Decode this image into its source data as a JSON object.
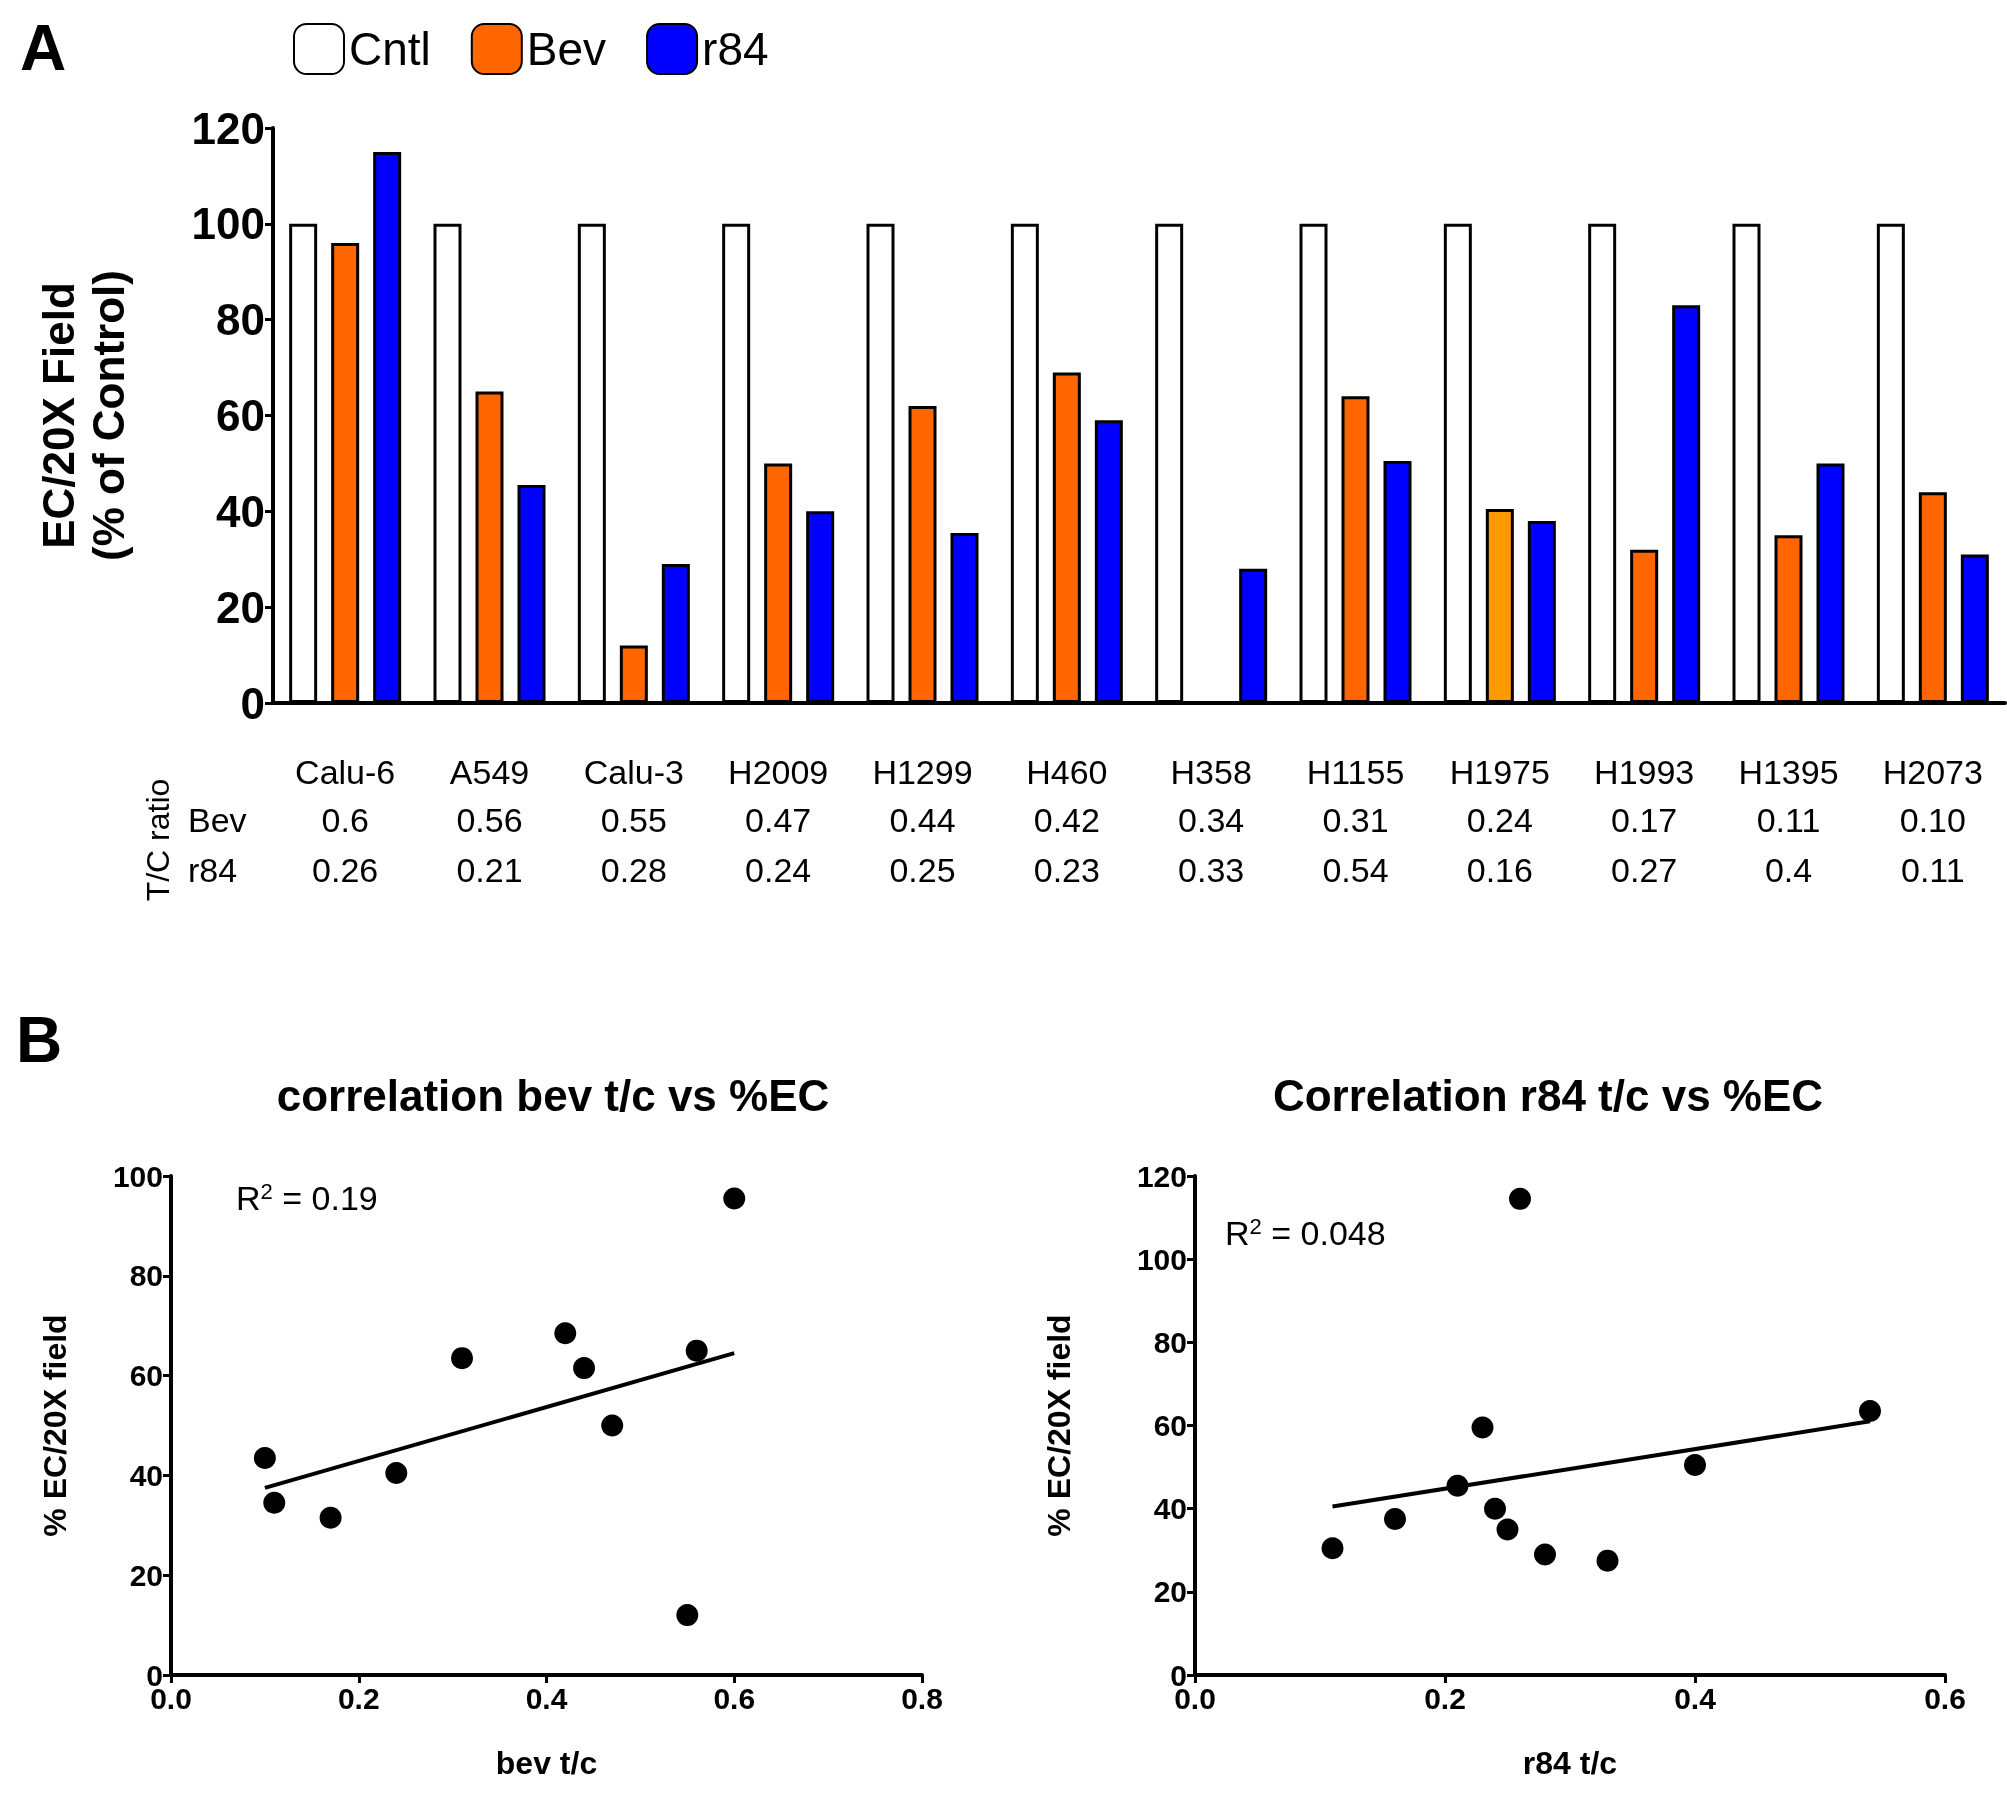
{
  "chart_data": [
    {
      "type": "bar",
      "ylabel": "EC/20X Field\n(% of Control)",
      "categories": [
        "Calu-6",
        "A549",
        "Calu-3",
        "H2009",
        "H1299",
        "H460",
        "H358",
        "H1155",
        "H1975",
        "H1993",
        "H1395",
        "H2073"
      ],
      "series": [
        {
          "name": "Cntl",
          "color": "#ffffff",
          "values": [
            100,
            100,
            100,
            100,
            100,
            100,
            100,
            100,
            100,
            100,
            100,
            100
          ]
        },
        {
          "name": "Bev",
          "color": "#ff6600",
          "colors": [
            "#ff6600",
            "#ff6600",
            "#ff6600",
            "#ff6600",
            "#ff6600",
            "#ff6600",
            "#ff6600",
            "#ff6600",
            "#ff9900",
            "#ff6600",
            "#ff6600",
            "#ff6600"
          ],
          "values": [
            96,
            65,
            12,
            50,
            62,
            69,
            null,
            64,
            40.5,
            32,
            35,
            44
          ]
        },
        {
          "name": "r84",
          "color": "#0000ff",
          "values": [
            115,
            45.5,
            29,
            40,
            35.5,
            59,
            28,
            50.5,
            38,
            83,
            50,
            31
          ]
        }
      ],
      "ylim": [
        0,
        120
      ],
      "yticks": [
        0,
        20,
        40,
        60,
        80,
        100,
        120
      ],
      "legend": "top left",
      "annotations": [
        "A",
        "T/C ratio",
        "Bev",
        "r84",
        "0.6",
        "0.56",
        "0.55",
        "0.47",
        "0.44",
        "0.42",
        "0.34",
        "0.31",
        "0.24",
        "0.17",
        "0.11",
        "0.10",
        "0.26",
        "0.21",
        "0.28",
        "0.24",
        "0.25",
        "0.23",
        "0.33",
        "0.54",
        "0.16",
        "0.27",
        "0.4",
        "0.11"
      ]
    },
    {
      "type": "scatter",
      "title": "correlation bev t/c vs %EC",
      "xlabel": "bev t/c",
      "ylabel": "% EC/20X field",
      "series": [
        {
          "marker": "circle",
          "color": "#000000",
          "x": [
            0.6,
            0.56,
            0.55,
            0.47,
            0.44,
            0.42,
            0.31,
            0.24,
            0.17,
            0.11,
            0.1
          ],
          "values": [
            95.5,
            65,
            12,
            50,
            61.5,
            68.5,
            63.5,
            40.5,
            31.5,
            34.5,
            43.5
          ]
        },
        {
          "type": "line",
          "color": "#000000",
          "x": [
            0.1,
            0.6
          ],
          "values": [
            37.5,
            64.5
          ]
        }
      ],
      "xlim": [
        0,
        0.8
      ],
      "xticks": [
        {
          "value": 0,
          "label": "0.0"
        },
        0.2,
        0.4,
        0.6,
        0.8
      ],
      "ylim": [
        0,
        100
      ],
      "yticks": [
        0,
        20,
        40,
        60,
        80,
        100
      ],
      "annotations": [
        "B",
        "R$^{2}$ = 0.19"
      ]
    },
    {
      "type": "scatter",
      "title": "Correlation r84 t/c vs %EC",
      "xlabel": "r84 t/c",
      "ylabel": "% EC/20X field",
      "series": [
        {
          "marker": "circle",
          "color": "#000000",
          "x": [
            0.26,
            0.54,
            0.23,
            0.21,
            0.4,
            0.24,
            0.25,
            0.16,
            0.11,
            0.28,
            0.33
          ],
          "values": [
            114.5,
            63.5,
            59.5,
            45.5,
            50.5,
            40,
            35,
            37.5,
            30.5,
            29,
            27.5
          ]
        },
        {
          "type": "line",
          "color": "#000000",
          "x": [
            0.11,
            0.54
          ],
          "values": [
            40.5,
            61
          ]
        }
      ],
      "xlim": [
        0,
        0.6
      ],
      "xticks": [
        {
          "value": 0,
          "label": "0.0"
        },
        0.2,
        0.4,
        0.6
      ],
      "ylim": [
        0,
        120
      ],
      "yticks": [
        0,
        20,
        40,
        60,
        80,
        100,
        120
      ],
      "annotations": [
        "R$^{2}$ = 0.048"
      ]
    }
  ]
}
